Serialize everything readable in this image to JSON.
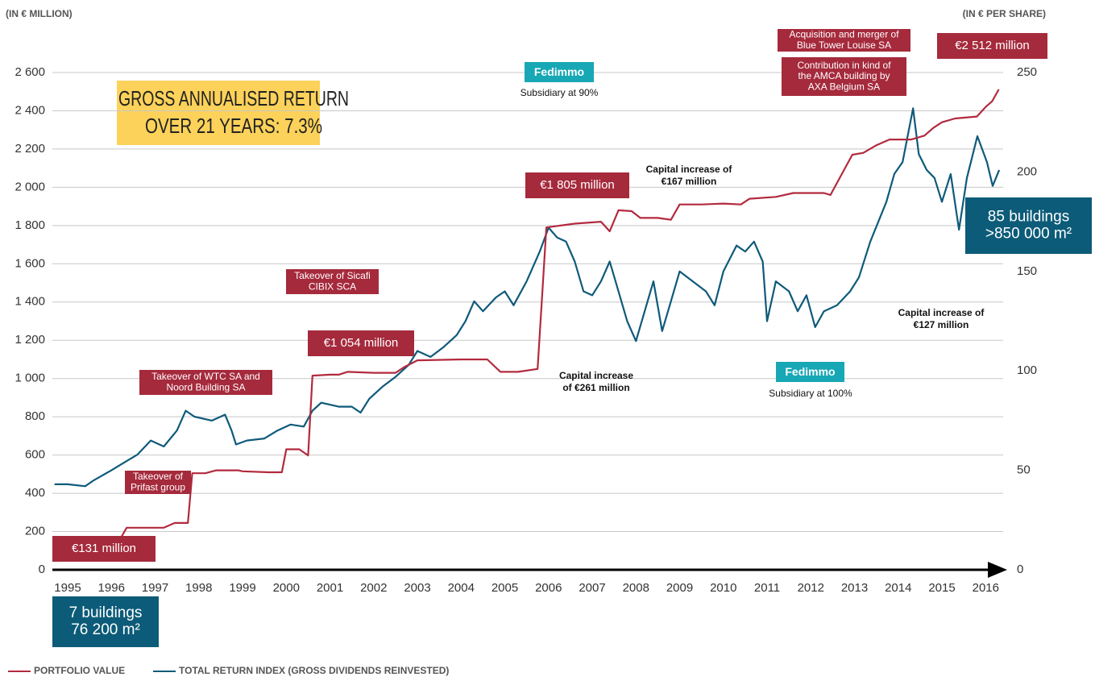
{
  "chart_data": {
    "type": "line",
    "title": [
      "GROSS ANNUALISED RETURN",
      "OVER 21 YEARS: 7.3%"
    ],
    "y_label": "(IN € MILLION)",
    "y2_label": "(IN € PER SHARE)",
    "xlim": [
      1994.65,
      2016.4
    ],
    "xticks": [
      1995,
      1996,
      1997,
      1998,
      1999,
      2000,
      2001,
      2002,
      2003,
      2004,
      2005,
      2006,
      2007,
      2008,
      2009,
      2010,
      2011,
      2012,
      2013,
      2014,
      2015,
      2016
    ],
    "ylim": [
      0,
      2600
    ],
    "yticks": [
      0,
      200,
      400,
      600,
      800,
      {
        "value": 1000,
        "label": "1 000"
      },
      {
        "value": 1200,
        "label": "1 200"
      },
      {
        "value": 1400,
        "label": "1 400"
      },
      {
        "value": 1600,
        "label": "1 600"
      },
      {
        "value": 1800,
        "label": "1 800"
      },
      {
        "value": 2000,
        "label": "2 000"
      },
      {
        "value": 2200,
        "label": "2 200"
      },
      {
        "value": 2400,
        "label": "2 400"
      },
      {
        "value": 2600,
        "label": "2 600"
      }
    ],
    "y2lim": [
      0,
      250
    ],
    "y2ticks": [
      0,
      50,
      100,
      150,
      200,
      250
    ],
    "grid": true,
    "legend": "bottom-left",
    "series": [
      {
        "name": "PORTFOLIO VALUE",
        "color": "#b22a3e",
        "x": [
          1995.0,
          1996.0,
          1996.2,
          1996.35,
          1997.2,
          1997.45,
          1997.75,
          1997.85,
          1998.15,
          1998.4,
          1998.9,
          1999.0,
          1999.6,
          1999.9,
          2000.0,
          2000.3,
          2000.5,
          2000.6,
          2001.0,
          2001.2,
          2001.4,
          2002.0,
          2002.5,
          2002.7,
          2003.0,
          2004.0,
          2004.6,
          2004.9,
          2005.3,
          2005.75,
          2005.95,
          2006.6,
          2007.2,
          2007.4,
          2007.6,
          2007.9,
          2008.1,
          2008.5,
          2008.8,
          2009.0,
          2009.5,
          2010.0,
          2010.4,
          2010.6,
          2011.2,
          2011.6,
          2012.3,
          2012.45,
          2012.95,
          2013.2,
          2013.5,
          2013.8,
          2014.3,
          2014.6,
          2014.8,
          2015.0,
          2015.3,
          2015.8,
          2016.0,
          2016.15,
          2016.3
        ],
        "values": [
          131,
          131,
          160,
          220,
          220,
          245,
          245,
          505,
          505,
          520,
          520,
          515,
          510,
          510,
          630,
          630,
          598,
          1015,
          1020,
          1020,
          1035,
          1030,
          1030,
          1060,
          1095,
          1100,
          1100,
          1035,
          1035,
          1050,
          1790,
          1810,
          1820,
          1770,
          1880,
          1875,
          1840,
          1840,
          1830,
          1910,
          1910,
          1915,
          1910,
          1940,
          1950,
          1970,
          1970,
          1960,
          2170,
          2180,
          2220,
          2250,
          2250,
          2270,
          2310,
          2340,
          2360,
          2370,
          2420,
          2450,
          2512
        ]
      },
      {
        "name": "TOTAL RETURN INDEX (GROSS DIVIDENDS REINVESTED)",
        "color": "#0e5a7a",
        "axis": "y2",
        "x": [
          1994.7,
          1995.0,
          1995.4,
          1995.6,
          1996.0,
          1996.3,
          1996.6,
          1996.9,
          1997.2,
          1997.5,
          1997.7,
          1997.9,
          1998.3,
          1998.6,
          1998.75,
          1998.85,
          1999.1,
          1999.5,
          1999.8,
          2000.1,
          2000.4,
          2000.6,
          2000.8,
          2001.2,
          2001.5,
          2001.7,
          2001.9,
          2002.2,
          2002.5,
          2002.8,
          2003.0,
          2003.3,
          2003.6,
          2003.9,
          2004.1,
          2004.3,
          2004.5,
          2004.8,
          2005.0,
          2005.2,
          2005.5,
          2005.8,
          2006.0,
          2006.2,
          2006.4,
          2006.6,
          2006.8,
          2007.0,
          2007.2,
          2007.4,
          2007.6,
          2007.8,
          2008.0,
          2008.2,
          2008.4,
          2008.6,
          2008.8,
          2009.0,
          2009.3,
          2009.6,
          2009.8,
          2010.0,
          2010.3,
          2010.5,
          2010.7,
          2010.9,
          2011.0,
          2011.2,
          2011.5,
          2011.7,
          2011.9,
          2012.1,
          2012.3,
          2012.6,
          2012.9,
          2013.1,
          2013.36,
          2013.73,
          2013.91,
          2014.1,
          2014.34,
          2014.47,
          2014.65,
          2014.83,
          2015.0,
          2015.2,
          2015.39,
          2015.57,
          2015.81,
          2016.03,
          2016.16,
          2016.31
        ],
        "values": [
          43,
          43,
          42,
          45,
          50,
          54,
          58,
          65,
          62,
          70,
          80,
          77,
          75,
          78,
          70,
          63,
          65,
          66,
          70,
          73,
          72,
          80,
          84,
          82,
          82,
          79,
          86,
          92,
          97,
          103,
          110,
          107,
          112,
          118,
          125,
          135,
          130,
          137,
          140,
          133,
          145,
          160,
          172,
          167,
          165,
          155,
          140,
          138,
          145,
          155,
          140,
          125,
          115,
          130,
          145,
          120,
          135,
          150,
          145,
          140,
          133,
          150,
          163,
          160,
          165,
          155,
          125,
          145,
          140,
          130,
          138,
          122,
          130,
          133,
          140,
          147,
          165,
          185,
          199,
          205,
          232,
          209,
          201,
          197,
          185,
          199,
          171,
          197,
          218,
          205,
          193,
          201
        ]
      }
    ],
    "annotations": [
      {
        "lines": [
          "€131 million"
        ]
      },
      {
        "lines": [
          "Takeover of",
          "Prifast group"
        ]
      },
      {
        "lines": [
          "Takeover of WTC SA and",
          "Noord Building SA"
        ]
      },
      {
        "lines": [
          "Takeover of Sicafi",
          "CIBIX SCA"
        ]
      },
      {
        "lines": [
          "€1 054 million"
        ]
      },
      {
        "lines": [
          "€1 805 million"
        ]
      },
      {
        "lines": [
          "Acquisition and merger of",
          "Blue Tower Louise SA"
        ]
      },
      {
        "lines": [
          "Contribution in kind of",
          "the AMCA building by",
          "AXA Belgium SA"
        ]
      },
      {
        "lines": [
          "€2 512 million"
        ]
      },
      {
        "lines": [
          "Capital increase of",
          "€167 million"
        ]
      },
      {
        "lines": [
          "Capital increase",
          "of €261 million"
        ]
      },
      {
        "lines": [
          "Capital increase of",
          "€127 million"
        ]
      },
      {
        "lines": [
          "Fedimmo"
        ]
      },
      {
        "lines": [
          "Subsidiary at 90%"
        ]
      },
      {
        "lines": [
          "Fedimmo"
        ]
      },
      {
        "lines": [
          "Subsidiary at 100%"
        ]
      },
      {
        "lines": [
          "7 buildings",
          "76 200 m²"
        ]
      },
      {
        "lines": [
          "85 buildings",
          ">850 000 m²"
        ]
      }
    ]
  }
}
